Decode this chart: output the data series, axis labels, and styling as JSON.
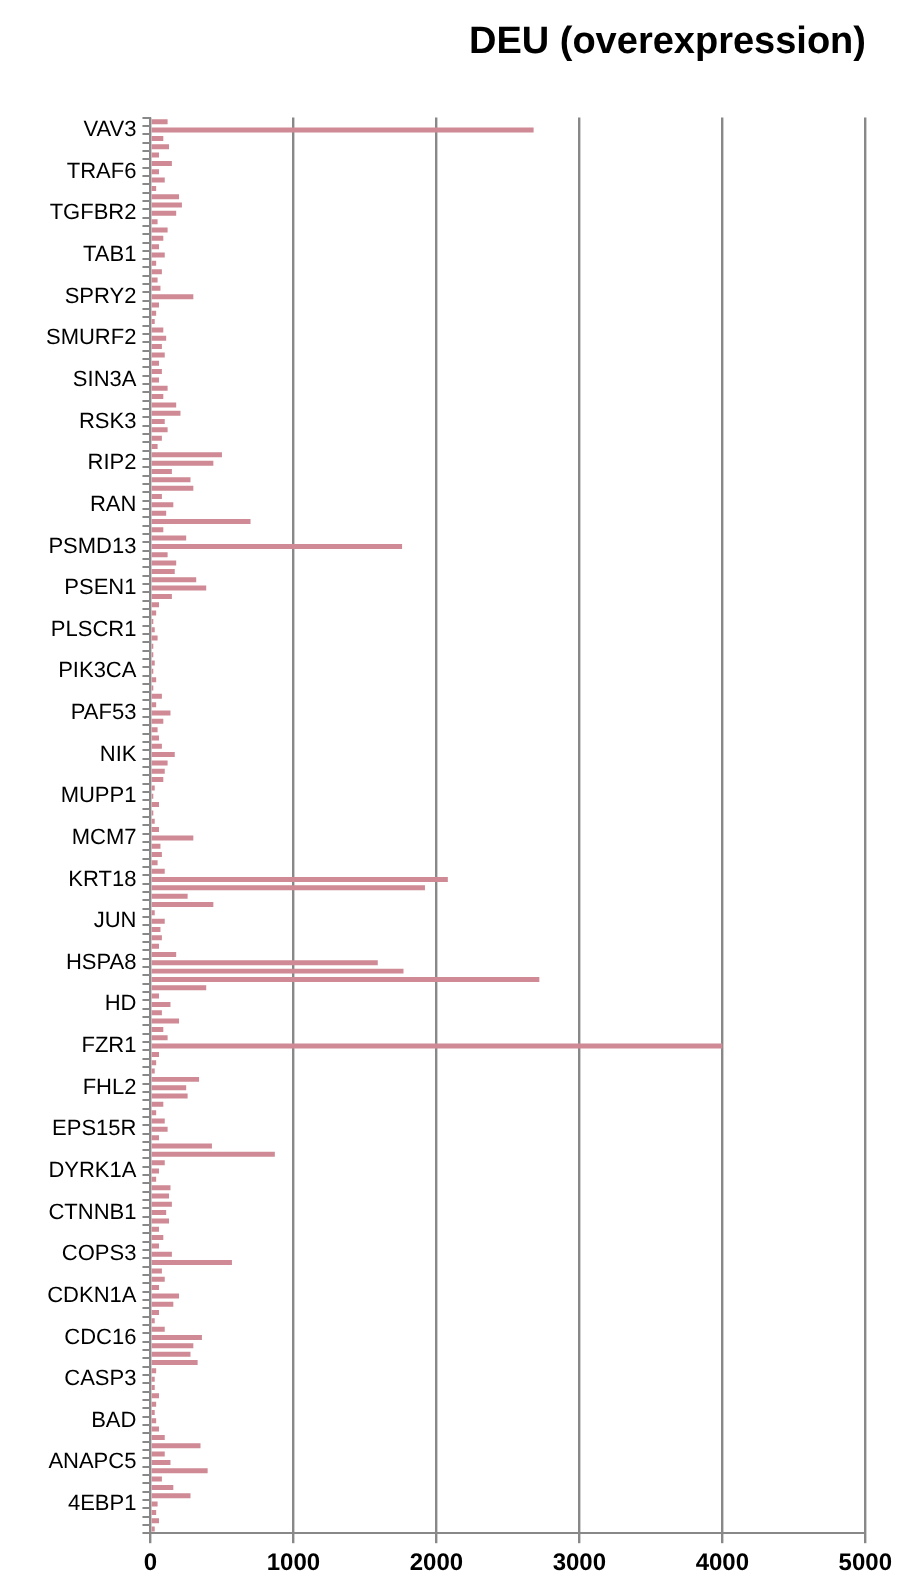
{
  "chart_data": {
    "type": "bar",
    "orientation": "horizontal",
    "title": "DEU (overexpression)",
    "categories": [
      null,
      "VAV3",
      null,
      null,
      null,
      null,
      "TRAF6",
      null,
      null,
      null,
      null,
      "TGFBR2",
      null,
      null,
      null,
      null,
      "TAB1",
      null,
      null,
      null,
      null,
      "SPRY2",
      null,
      null,
      null,
      null,
      "SMURF2",
      null,
      null,
      null,
      null,
      "SIN3A",
      null,
      null,
      null,
      null,
      "RSK3",
      null,
      null,
      null,
      null,
      "RIP2",
      null,
      null,
      null,
      null,
      "RAN",
      null,
      null,
      null,
      null,
      "PSMD13",
      null,
      null,
      null,
      null,
      "PSEN1",
      null,
      null,
      null,
      null,
      "PLSCR1",
      null,
      null,
      null,
      null,
      "PIK3CA",
      null,
      null,
      null,
      null,
      "PAF53",
      null,
      null,
      null,
      null,
      "NIK",
      null,
      null,
      null,
      null,
      "MUPP1",
      null,
      null,
      null,
      null,
      "MCM7",
      null,
      null,
      null,
      null,
      "KRT18",
      null,
      null,
      null,
      null,
      "JUN",
      null,
      null,
      null,
      null,
      "HSPA8",
      null,
      null,
      null,
      null,
      "HD",
      null,
      null,
      null,
      null,
      "FZR1",
      null,
      null,
      null,
      null,
      "FHL2",
      null,
      null,
      null,
      null,
      "EPS15R",
      null,
      null,
      null,
      null,
      "DYRK1A",
      null,
      null,
      null,
      null,
      "CTNNB1",
      null,
      null,
      null,
      null,
      "COPS3",
      null,
      null,
      null,
      null,
      "CDKN1A",
      null,
      null,
      null,
      null,
      "CDC16",
      null,
      null,
      null,
      null,
      "CASP3",
      null,
      null,
      null,
      null,
      "BAD",
      null,
      null,
      null,
      null,
      "ANAPC5",
      null,
      null,
      null,
      null,
      "4EBP1",
      null,
      null,
      null
    ],
    "values": [
      120,
      2680,
      90,
      130,
      60,
      150,
      60,
      100,
      40,
      200,
      220,
      180,
      50,
      120,
      90,
      60,
      100,
      40,
      80,
      50,
      70,
      300,
      60,
      40,
      30,
      90,
      110,
      80,
      100,
      60,
      80,
      60,
      120,
      90,
      180,
      210,
      100,
      120,
      80,
      50,
      500,
      440,
      150,
      280,
      300,
      80,
      160,
      110,
      700,
      90,
      250,
      1760,
      120,
      180,
      170,
      320,
      390,
      150,
      60,
      40,
      20,
      30,
      50,
      20,
      20,
      30,
      20,
      40,
      20,
      80,
      40,
      140,
      90,
      50,
      60,
      80,
      170,
      120,
      100,
      90,
      30,
      20,
      60,
      20,
      30,
      60,
      300,
      70,
      80,
      50,
      100,
      2080,
      1920,
      260,
      440,
      30,
      100,
      70,
      80,
      60,
      180,
      1590,
      1770,
      2720,
      390,
      60,
      140,
      80,
      200,
      90,
      120,
      4000,
      60,
      40,
      30,
      340,
      250,
      260,
      90,
      40,
      100,
      120,
      60,
      430,
      870,
      100,
      60,
      40,
      140,
      130,
      150,
      110,
      130,
      60,
      90,
      60,
      150,
      570,
      80,
      100,
      60,
      200,
      160,
      60,
      30,
      100,
      360,
      300,
      280,
      330,
      40,
      30,
      30,
      60,
      40,
      30,
      40,
      60,
      100,
      350,
      100,
      140,
      400,
      80,
      160,
      280,
      50,
      40,
      60,
      30
    ],
    "color": "#cf8a95",
    "xlim": [
      0,
      5000
    ],
    "xticks": [
      0,
      1000,
      2000,
      3000,
      4000,
      5000
    ],
    "grid": "x"
  }
}
